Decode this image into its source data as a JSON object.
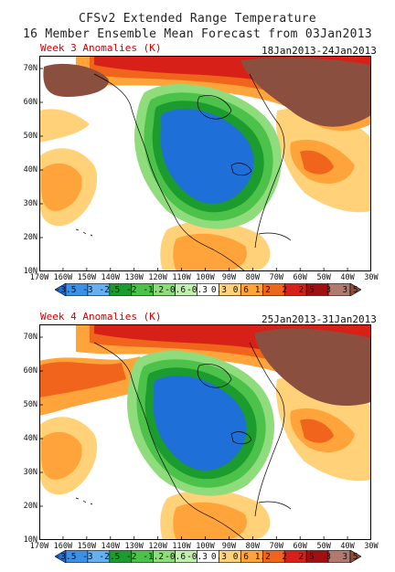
{
  "title_line1": "CFSv2 Extended Range Temperature",
  "title_line2": "16 Member Ensemble Mean Forecast from 03Jan2013",
  "panels": [
    {
      "label": "Week 3 Anomalies (K)",
      "dates": "18Jan2013-24Jan2013"
    },
    {
      "label": "Week 4 Anomalies (K)",
      "dates": "25Jan2013-31Jan2013"
    }
  ],
  "lat_labels": [
    "70N",
    "60N",
    "50N",
    "40N",
    "30N",
    "20N",
    "10N"
  ],
  "lon_labels": [
    "170W",
    "160W",
    "150W",
    "140W",
    "130W",
    "120W",
    "110W",
    "100W",
    "90W",
    "80W",
    "70W",
    "60W",
    "50W",
    "40W",
    "30W"
  ],
  "colorbar": {
    "labels": [
      "-3.5",
      "-3",
      "-2.5",
      "-2",
      "-1.2",
      "-0.6",
      "-0.3",
      "0.3",
      "0.6",
      "1.2",
      "2",
      "2.5",
      "3",
      "3.5"
    ],
    "colors": [
      "#1e6fd8",
      "#3c91e6",
      "#66b0f0",
      "#1c9b2f",
      "#4cc24a",
      "#8fdc7c",
      "#c3f0b0",
      "#ffffff",
      "#ffd27a",
      "#ffa43a",
      "#f0641c",
      "#d62018",
      "#a01010",
      "#b07a70",
      "#8a4f3e"
    ]
  },
  "map_colors": {
    "cold_core": "#1e6fd8",
    "cold_ring1": "#3c91e6",
    "cold_ring2": "#1c9b2f",
    "cold_ring3": "#4cc24a",
    "cold_ring4": "#8fdc7c",
    "warm_light": "#ffd27a",
    "warm_orange": "#ffa43a",
    "warm_dark": "#f0641c",
    "warm_red": "#d62018",
    "brown": "#8a4f3e",
    "land_line": "#000000"
  }
}
